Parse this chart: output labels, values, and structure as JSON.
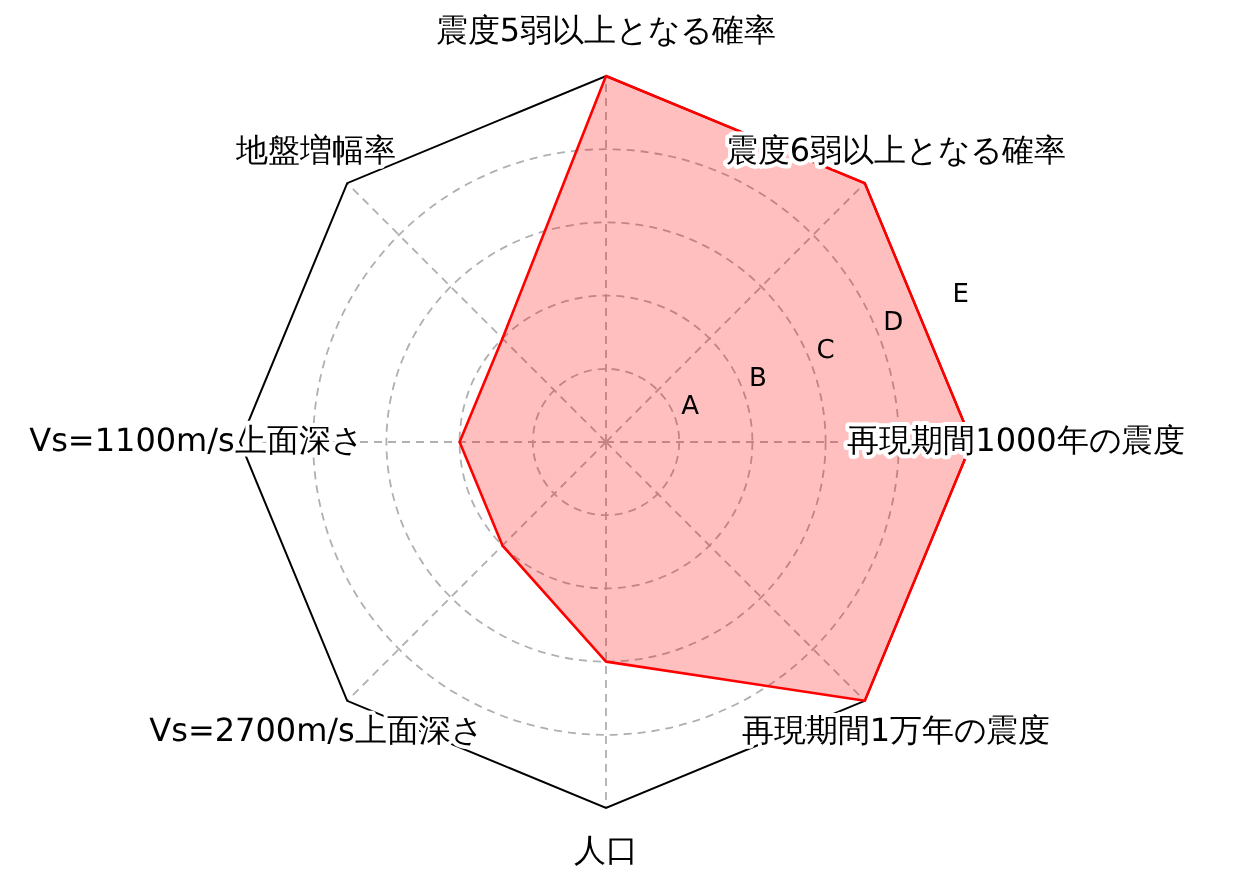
{
  "chart_data": {
    "type": "radar",
    "categories": [
      "震度5弱以上となる確率",
      "震度6弱以上となる確率",
      "再現期間1000年の震度",
      "再現期間1万年の震度",
      "人口",
      "Vs=2700m/s上面深さ",
      "Vs=1100m/s上面深さ",
      "地盤増幅率"
    ],
    "series": [
      {
        "color": "#ff0000",
        "values": [
          5,
          5,
          5,
          5,
          3,
          2,
          2,
          2
        ]
      }
    ],
    "ylim": [
      0,
      5
    ],
    "yticks": [
      {
        "value": 1,
        "label": "A"
      },
      {
        "value": 2,
        "label": "B"
      },
      {
        "value": 3,
        "label": "C"
      },
      {
        "value": 4,
        "label": "D"
      },
      {
        "value": 5,
        "label": "E"
      }
    ],
    "grid": true
  }
}
